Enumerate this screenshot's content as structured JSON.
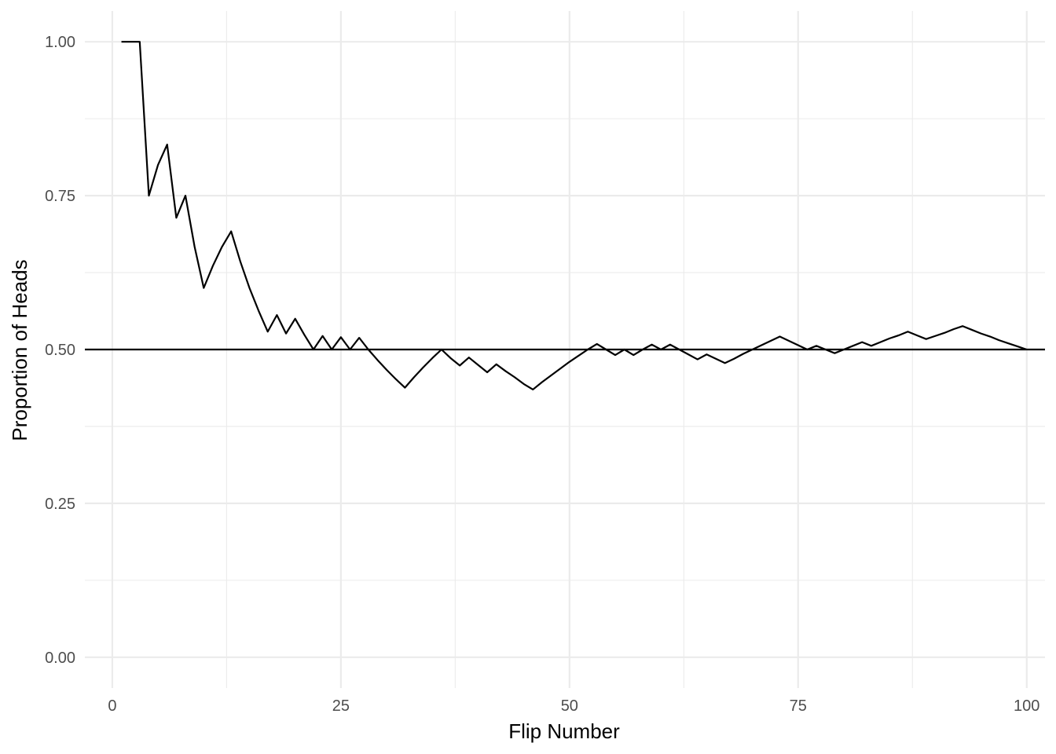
{
  "chart_data": {
    "type": "line",
    "title": "",
    "xlabel": "Flip Number",
    "ylabel": "Proportion of Heads",
    "xlim": [
      -3,
      102
    ],
    "ylim": [
      -0.05,
      1.05
    ],
    "x_ticks": [
      0,
      25,
      50,
      75,
      100
    ],
    "x_tick_labels": [
      "0",
      "25",
      "50",
      "75",
      "100"
    ],
    "y_ticks": [
      0,
      0.25,
      0.5,
      0.75,
      1
    ],
    "y_tick_labels": [
      "0.00",
      "0.25",
      "0.50",
      "0.75",
      "1.00"
    ],
    "x_minor_ticks": [
      12.5,
      37.5,
      62.5,
      87.5
    ],
    "y_minor_ticks": [
      0.125,
      0.375,
      0.625,
      0.875
    ],
    "grid": true,
    "reference_line": {
      "y": 0.5
    },
    "line_color": "#000000",
    "grid_color": "#ebebeb",
    "series": [
      {
        "x": [
          1,
          2,
          3,
          4,
          5,
          6,
          7,
          8,
          9,
          10,
          11,
          12,
          13,
          14,
          15,
          16,
          17,
          18,
          19,
          20,
          21,
          22,
          23,
          24,
          25,
          26,
          27,
          28,
          29,
          30,
          31,
          32,
          33,
          34,
          35,
          36,
          37,
          38,
          39,
          40,
          41,
          42,
          43,
          44,
          45,
          46,
          47,
          48,
          49,
          50,
          51,
          52,
          53,
          54,
          55,
          56,
          57,
          58,
          59,
          60,
          61,
          62,
          63,
          64,
          65,
          66,
          67,
          68,
          69,
          70,
          71,
          72,
          73,
          74,
          75,
          76,
          77,
          78,
          79,
          80,
          81,
          82,
          83,
          84,
          85,
          86,
          87,
          88,
          89,
          90,
          91,
          92,
          93,
          94,
          95,
          96,
          97,
          98,
          99,
          100
        ],
        "values": [
          1.0,
          1.0,
          1.0,
          0.75,
          0.8,
          0.833,
          0.714,
          0.75,
          0.667,
          0.6,
          0.636,
          0.667,
          0.692,
          0.643,
          0.6,
          0.563,
          0.529,
          0.556,
          0.526,
          0.55,
          0.524,
          0.5,
          0.522,
          0.5,
          0.52,
          0.5,
          0.519,
          0.5,
          0.483,
          0.467,
          0.452,
          0.438,
          0.455,
          0.471,
          0.486,
          0.5,
          0.486,
          0.474,
          0.487,
          0.475,
          0.463,
          0.476,
          0.465,
          0.455,
          0.444,
          0.435,
          0.447,
          0.458,
          0.469,
          0.48,
          0.49,
          0.5,
          0.509,
          0.5,
          0.491,
          0.5,
          0.491,
          0.5,
          0.508,
          0.5,
          0.508,
          0.5,
          0.492,
          0.484,
          0.492,
          0.485,
          0.478,
          0.485,
          0.493,
          0.5,
          0.507,
          0.514,
          0.521,
          0.514,
          0.507,
          0.5,
          0.506,
          0.5,
          0.494,
          0.5,
          0.506,
          0.512,
          0.506,
          0.512,
          0.518,
          0.523,
          0.529,
          0.523,
          0.517,
          0.522,
          0.527,
          0.533,
          0.538,
          0.532,
          0.526,
          0.521,
          0.515,
          0.51,
          0.505,
          0.5
        ]
      }
    ]
  }
}
